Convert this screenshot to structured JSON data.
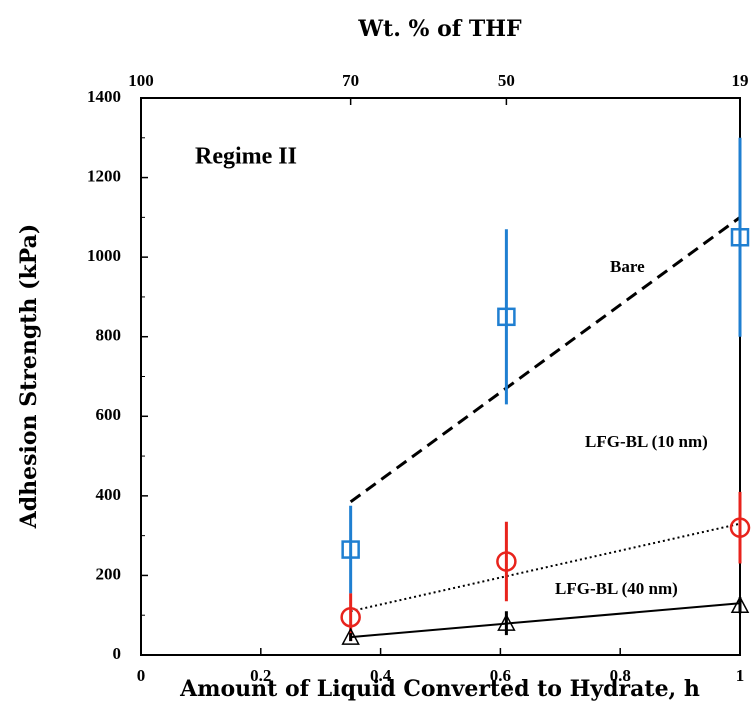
{
  "chart_data": {
    "type": "scatter",
    "title": "Wt. % of THF",
    "x_label": "Amount of Liquid Converted to Hydrate, h",
    "y_label": "Adhesion Strength (kPa)",
    "annotation": "Regime II",
    "xlim": [
      0,
      1
    ],
    "xticks": [
      0,
      0.2,
      0.4,
      0.6,
      0.8,
      1
    ],
    "ylim": [
      0,
      1400
    ],
    "yticks": [
      0,
      200,
      400,
      600,
      800,
      1000,
      1200,
      1400
    ],
    "x2ticks": [
      {
        "value": 0,
        "label": "100"
      },
      {
        "value": 0.35,
        "label": "70"
      },
      {
        "value": 0.61,
        "label": "50"
      },
      {
        "value": 1,
        "label": "19"
      }
    ],
    "series": [
      {
        "name": "Bare",
        "color": "#1f7fd1",
        "marker": "square",
        "line": "dashed",
        "x": [
          0.35,
          0.61,
          1
        ],
        "values": [
          265,
          850,
          1050
        ],
        "errors": [
          110,
          220,
          250
        ],
        "trend": {
          "x": [
            0.35,
            1
          ],
          "values": [
            385,
            1100
          ]
        }
      },
      {
        "name": "LFG-BL (10 nm)",
        "color": "#e8231c",
        "marker": "circle",
        "line": "dotted",
        "x": [
          0.35,
          0.61,
          1
        ],
        "values": [
          95,
          235,
          320
        ],
        "errors": [
          60,
          100,
          90
        ],
        "trend": {
          "x": [
            0.35,
            1
          ],
          "values": [
            110,
            330
          ]
        }
      },
      {
        "name": "LFG-BL (40 nm)",
        "color": "#000000",
        "marker": "triangle",
        "line": "solid",
        "x": [
          0.35,
          0.61,
          1
        ],
        "values": [
          45,
          80,
          125
        ],
        "errors": [
          10,
          30,
          20
        ],
        "trend": {
          "x": [
            0.35,
            1
          ],
          "values": [
            45,
            130
          ]
        }
      }
    ]
  }
}
